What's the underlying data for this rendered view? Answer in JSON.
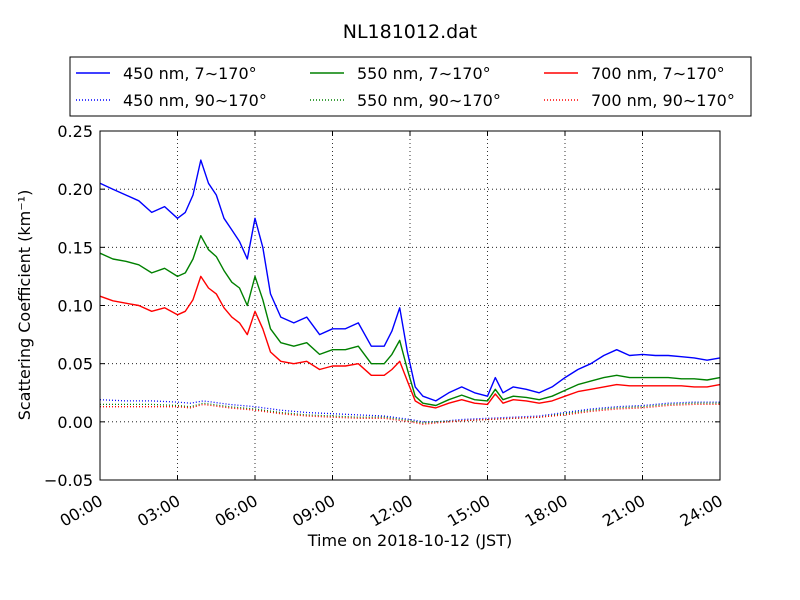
{
  "chart_data": {
    "type": "line",
    "title": "NL181012.dat",
    "xlabel": "Time on 2018-10-12 (JST)",
    "ylabel": "Scattering Coefficient (km⁻¹)",
    "xlim": [
      0,
      24
    ],
    "ylim": [
      -0.05,
      0.25
    ],
    "x_ticks": [
      "00:00",
      "03:00",
      "06:00",
      "09:00",
      "12:00",
      "15:00",
      "18:00",
      "21:00",
      "24:00"
    ],
    "y_ticks": [
      "−0.05",
      "0.00",
      "0.05",
      "0.10",
      "0.15",
      "0.20",
      "0.25"
    ],
    "grid": true,
    "legend_placement": "top",
    "x_unit": "hours (JST)",
    "series": [
      {
        "name": "450 nm, 7∼170°",
        "color": "#0000ff",
        "style": "solid",
        "x": [
          0,
          0.5,
          1,
          1.5,
          2,
          2.5,
          3,
          3.3,
          3.6,
          3.9,
          4.2,
          4.5,
          4.8,
          5.1,
          5.4,
          5.7,
          6,
          6.3,
          6.6,
          7,
          7.5,
          8,
          8.5,
          9,
          9.5,
          10,
          10.5,
          11,
          11.3,
          11.6,
          11.9,
          12.2,
          12.5,
          13,
          13.5,
          14,
          14.5,
          15,
          15.3,
          15.6,
          16,
          16.5,
          17,
          17.5,
          18,
          18.5,
          19,
          19.5,
          20,
          20.5,
          21,
          21.5,
          22,
          22.5,
          23,
          23.5,
          24
        ],
        "values": [
          0.205,
          0.2,
          0.195,
          0.19,
          0.18,
          0.185,
          0.175,
          0.18,
          0.195,
          0.225,
          0.205,
          0.195,
          0.175,
          0.165,
          0.155,
          0.14,
          0.175,
          0.15,
          0.11,
          0.09,
          0.085,
          0.09,
          0.075,
          0.08,
          0.08,
          0.085,
          0.065,
          0.065,
          0.078,
          0.098,
          0.06,
          0.03,
          0.022,
          0.018,
          0.025,
          0.03,
          0.025,
          0.022,
          0.038,
          0.025,
          0.03,
          0.028,
          0.025,
          0.03,
          0.038,
          0.045,
          0.05,
          0.057,
          0.062,
          0.057,
          0.058,
          0.057,
          0.057,
          0.056,
          0.055,
          0.053,
          0.055
        ]
      },
      {
        "name": "550 nm, 7∼170°",
        "color": "#008000",
        "style": "solid",
        "x": [
          0,
          0.5,
          1,
          1.5,
          2,
          2.5,
          3,
          3.3,
          3.6,
          3.9,
          4.2,
          4.5,
          4.8,
          5.1,
          5.4,
          5.7,
          6,
          6.3,
          6.6,
          7,
          7.5,
          8,
          8.5,
          9,
          9.5,
          10,
          10.5,
          11,
          11.3,
          11.6,
          11.9,
          12.2,
          12.5,
          13,
          13.5,
          14,
          14.5,
          15,
          15.3,
          15.6,
          16,
          16.5,
          17,
          17.5,
          18,
          18.5,
          19,
          19.5,
          20,
          20.5,
          21,
          21.5,
          22,
          22.5,
          23,
          23.5,
          24
        ],
        "values": [
          0.145,
          0.14,
          0.138,
          0.135,
          0.128,
          0.132,
          0.125,
          0.128,
          0.14,
          0.16,
          0.148,
          0.142,
          0.13,
          0.12,
          0.115,
          0.1,
          0.125,
          0.105,
          0.08,
          0.068,
          0.065,
          0.068,
          0.058,
          0.062,
          0.062,
          0.065,
          0.05,
          0.05,
          0.058,
          0.07,
          0.045,
          0.022,
          0.016,
          0.014,
          0.019,
          0.023,
          0.019,
          0.018,
          0.028,
          0.019,
          0.022,
          0.021,
          0.019,
          0.022,
          0.027,
          0.032,
          0.035,
          0.038,
          0.04,
          0.038,
          0.038,
          0.038,
          0.038,
          0.037,
          0.037,
          0.036,
          0.038
        ]
      },
      {
        "name": "700 nm, 7∼170°",
        "color": "#ff0000",
        "style": "solid",
        "x": [
          0,
          0.5,
          1,
          1.5,
          2,
          2.5,
          3,
          3.3,
          3.6,
          3.9,
          4.2,
          4.5,
          4.8,
          5.1,
          5.4,
          5.7,
          6,
          6.3,
          6.6,
          7,
          7.5,
          8,
          8.5,
          9,
          9.5,
          10,
          10.5,
          11,
          11.3,
          11.6,
          11.9,
          12.2,
          12.5,
          13,
          13.5,
          14,
          14.5,
          15,
          15.3,
          15.6,
          16,
          16.5,
          17,
          17.5,
          18,
          18.5,
          19,
          19.5,
          20,
          20.5,
          21,
          21.5,
          22,
          22.5,
          23,
          23.5,
          24
        ],
        "values": [
          0.108,
          0.104,
          0.102,
          0.1,
          0.095,
          0.098,
          0.092,
          0.095,
          0.105,
          0.125,
          0.115,
          0.11,
          0.098,
          0.09,
          0.085,
          0.075,
          0.095,
          0.08,
          0.06,
          0.052,
          0.05,
          0.052,
          0.045,
          0.048,
          0.048,
          0.05,
          0.04,
          0.04,
          0.045,
          0.052,
          0.035,
          0.018,
          0.014,
          0.012,
          0.016,
          0.019,
          0.016,
          0.015,
          0.024,
          0.016,
          0.019,
          0.018,
          0.016,
          0.018,
          0.022,
          0.026,
          0.028,
          0.03,
          0.032,
          0.031,
          0.031,
          0.031,
          0.031,
          0.031,
          0.03,
          0.03,
          0.032
        ]
      },
      {
        "name": "450 nm, 90∼170°",
        "color": "#0000ff",
        "style": "dotted",
        "x": [
          0,
          1,
          2,
          3,
          3.5,
          4,
          5,
          6,
          7,
          8,
          9,
          10,
          11,
          12,
          12.5,
          13,
          14,
          15,
          16,
          17,
          18,
          19,
          20,
          21,
          22,
          23,
          24
        ],
        "values": [
          0.019,
          0.018,
          0.018,
          0.017,
          0.016,
          0.018,
          0.015,
          0.013,
          0.01,
          0.008,
          0.007,
          0.006,
          0.005,
          0.002,
          0.0,
          0.0,
          0.002,
          0.003,
          0.004,
          0.005,
          0.008,
          0.011,
          0.013,
          0.014,
          0.016,
          0.017,
          0.017
        ]
      },
      {
        "name": "550 nm, 90∼170°",
        "color": "#008000",
        "style": "dotted",
        "x": [
          0,
          1,
          2,
          3,
          3.5,
          4,
          5,
          6,
          7,
          8,
          9,
          10,
          11,
          12,
          12.5,
          13,
          14,
          15,
          16,
          17,
          18,
          19,
          20,
          21,
          22,
          23,
          24
        ],
        "values": [
          0.015,
          0.015,
          0.015,
          0.014,
          0.013,
          0.016,
          0.013,
          0.011,
          0.008,
          0.006,
          0.005,
          0.004,
          0.004,
          0.001,
          -0.001,
          0.0,
          0.001,
          0.002,
          0.003,
          0.004,
          0.007,
          0.01,
          0.012,
          0.013,
          0.015,
          0.016,
          0.016
        ]
      },
      {
        "name": "700 nm, 90∼170°",
        "color": "#ff0000",
        "style": "dotted",
        "x": [
          0,
          1,
          2,
          3,
          3.5,
          4,
          5,
          6,
          7,
          8,
          9,
          10,
          11,
          12,
          12.5,
          13,
          14,
          15,
          16,
          17,
          18,
          19,
          20,
          21,
          22,
          23,
          24
        ],
        "values": [
          0.013,
          0.013,
          0.013,
          0.013,
          0.012,
          0.015,
          0.012,
          0.01,
          0.007,
          0.005,
          0.004,
          0.003,
          0.003,
          0.0,
          -0.002,
          -0.001,
          0.001,
          0.002,
          0.003,
          0.004,
          0.006,
          0.009,
          0.011,
          0.012,
          0.014,
          0.015,
          0.015
        ]
      }
    ]
  }
}
